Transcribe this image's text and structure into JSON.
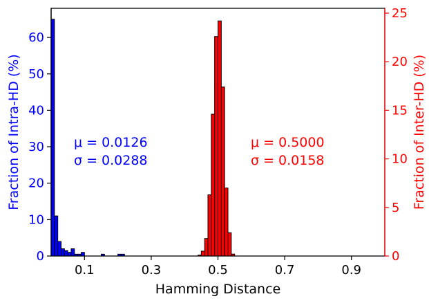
{
  "chart_data": {
    "type": "bar",
    "xlabel": "Hamming Distance",
    "xlim": [
      0,
      1
    ],
    "xticks": [
      0.1,
      0.3,
      0.5,
      0.7,
      0.9
    ],
    "xtick_labels": [
      "0.1",
      "0.3",
      "0.5",
      "0.7",
      "0.9"
    ],
    "bin_width": 0.01,
    "series": [
      {
        "axis": "left",
        "color": "#0000ff",
        "ylabel": "Fraction of Intra-HD (%)",
        "ylim": [
          0,
          68
        ],
        "yticks": [
          0,
          10,
          20,
          30,
          40,
          50,
          60
        ],
        "ytick_labels": [
          "0",
          "10",
          "20",
          "30",
          "40",
          "50",
          "60"
        ],
        "bins_left_edge": [
          0.0,
          0.01,
          0.02,
          0.03,
          0.04,
          0.05,
          0.06,
          0.07,
          0.08,
          0.09,
          0.15,
          0.2,
          0.21
        ],
        "values": [
          65,
          11,
          4,
          2,
          1.5,
          1,
          2,
          0.5,
          0.5,
          1,
          0.5,
          0.5,
          0.5
        ],
        "annotation": {
          "mu": "μ = 0.0126",
          "sigma": "σ = 0.0288"
        }
      },
      {
        "axis": "right",
        "color": "#ff0000",
        "ylabel": "Fraction of Inter-HD (%)",
        "ylim": [
          0,
          25.5
        ],
        "yticks": [
          0,
          5,
          10,
          15,
          20,
          25
        ],
        "ytick_labels": [
          "0",
          "5",
          "10",
          "15",
          "20",
          "25"
        ],
        "bins_left_edge": [
          0.44,
          0.45,
          0.46,
          0.47,
          0.48,
          0.49,
          0.5,
          0.51,
          0.52,
          0.53,
          0.54
        ],
        "values": [
          0.1,
          0.5,
          1.8,
          6.3,
          14.6,
          22.6,
          24.2,
          17.4,
          7.0,
          2.4,
          0.2
        ],
        "annotation": {
          "mu": "μ = 0.5000",
          "sigma": "σ = 0.0158"
        }
      }
    ]
  }
}
